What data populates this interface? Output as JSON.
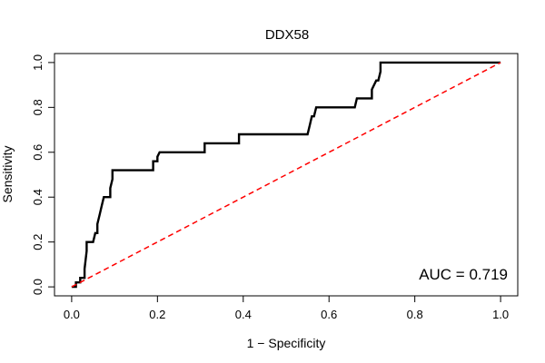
{
  "chart_data": {
    "type": "line",
    "title": "DDX58",
    "xlabel": "1 − Specificity",
    "ylabel": "Sensitivity",
    "xlim": [
      -0.04,
      1.04
    ],
    "ylim": [
      -0.04,
      1.04
    ],
    "x_ticks": [
      "0.0",
      "0.2",
      "0.4",
      "0.6",
      "0.8",
      "1.0"
    ],
    "y_ticks": [
      "0.0",
      "0.2",
      "0.4",
      "0.6",
      "0.8",
      "1.0"
    ],
    "annotation": "AUC = 0.719",
    "grid": false,
    "series": [
      {
        "color": "#000000",
        "points": [
          [
            0.0,
            0.0
          ],
          [
            0.01,
            0.0
          ],
          [
            0.01,
            0.02
          ],
          [
            0.02,
            0.02
          ],
          [
            0.02,
            0.04
          ],
          [
            0.03,
            0.04
          ],
          [
            0.03,
            0.08
          ],
          [
            0.035,
            0.16
          ],
          [
            0.035,
            0.2
          ],
          [
            0.05,
            0.2
          ],
          [
            0.055,
            0.24
          ],
          [
            0.06,
            0.24
          ],
          [
            0.06,
            0.28
          ],
          [
            0.065,
            0.32
          ],
          [
            0.07,
            0.36
          ],
          [
            0.075,
            0.4
          ],
          [
            0.09,
            0.4
          ],
          [
            0.09,
            0.44
          ],
          [
            0.095,
            0.48
          ],
          [
            0.095,
            0.52
          ],
          [
            0.19,
            0.52
          ],
          [
            0.19,
            0.56
          ],
          [
            0.2,
            0.56
          ],
          [
            0.2,
            0.58
          ],
          [
            0.205,
            0.6
          ],
          [
            0.31,
            0.6
          ],
          [
            0.31,
            0.64
          ],
          [
            0.39,
            0.64
          ],
          [
            0.39,
            0.68
          ],
          [
            0.55,
            0.68
          ],
          [
            0.555,
            0.72
          ],
          [
            0.56,
            0.76
          ],
          [
            0.565,
            0.76
          ],
          [
            0.57,
            0.8
          ],
          [
            0.66,
            0.8
          ],
          [
            0.665,
            0.84
          ],
          [
            0.7,
            0.84
          ],
          [
            0.7,
            0.88
          ],
          [
            0.71,
            0.92
          ],
          [
            0.715,
            0.92
          ],
          [
            0.72,
            0.96
          ],
          [
            0.72,
            1.0
          ],
          [
            1.0,
            1.0
          ]
        ]
      },
      {
        "color": "#ff0000",
        "style": "dashed",
        "points": [
          [
            0.0,
            0.0
          ],
          [
            1.0,
            1.0
          ]
        ]
      }
    ]
  }
}
